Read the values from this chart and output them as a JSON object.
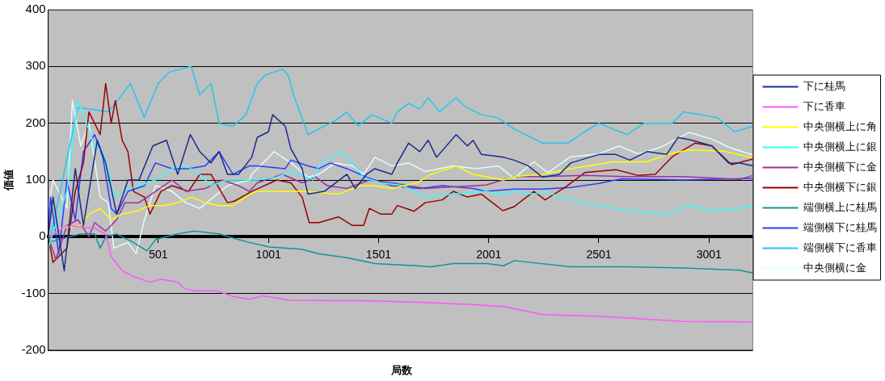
{
  "chart_data": {
    "type": "line",
    "xlabel": "局数",
    "ylabel": "価値",
    "xlim": [
      1,
      3200
    ],
    "xticks": [
      501,
      1001,
      1501,
      2001,
      2501,
      3001
    ],
    "ylim": [
      -200,
      400
    ],
    "yticks": [
      -200,
      -100,
      0,
      100,
      200,
      300,
      400
    ],
    "grid": "y",
    "legend": "right",
    "marker": "none",
    "series": [
      {
        "name": "下に桂馬",
        "color": "#1a2a8c",
        "x": [
          1,
          23,
          74,
          124,
          161,
          224,
          262,
          312,
          363,
          413,
          476,
          538,
          589,
          646,
          689,
          740,
          777,
          815,
          865,
          925,
          950,
          1001,
          1020,
          1077,
          1103,
          1154,
          1180,
          1255,
          1357,
          1395,
          1446,
          1484,
          1561,
          1586,
          1637,
          1688,
          1726,
          1764,
          1853,
          1904,
          1930,
          1968,
          2069,
          2116,
          2180,
          2245,
          2322,
          2373,
          2501,
          2578,
          2642,
          2719,
          2809,
          2860,
          2924,
          3014,
          3090,
          3141,
          3200
        ],
        "values": [
          0,
          70,
          -60,
          120,
          20,
          170,
          130,
          40,
          100,
          100,
          160,
          170,
          110,
          180,
          150,
          130,
          150,
          110,
          110,
          140,
          175,
          185,
          215,
          195,
          155,
          120,
          75,
          80,
          110,
          85,
          110,
          120,
          110,
          130,
          165,
          150,
          170,
          140,
          180,
          160,
          170,
          145,
          140,
          135,
          125,
          105,
          110,
          130,
          145,
          145,
          135,
          150,
          145,
          175,
          170,
          160,
          130,
          130,
          125
        ]
      },
      {
        "name": "下に香車",
        "color": "#ff55ff",
        "x": [
          1,
          86,
          212,
          262,
          287,
          337,
          388,
          463,
          513,
          589,
          614,
          664,
          765,
          840,
          915,
          975,
          1103,
          1484,
          1739,
          1955,
          2069,
          2245,
          2501,
          2885,
          3200
        ],
        "values": [
          0,
          20,
          15,
          5,
          -35,
          -60,
          -70,
          -80,
          -75,
          -80,
          -90,
          -95,
          -95,
          -105,
          -110,
          -104,
          -112,
          -113,
          -116,
          -120,
          -123,
          -137,
          -140,
          -149,
          -150
        ]
      },
      {
        "name": "中央側横上に角",
        "color": "#ffff00",
        "x": [
          1,
          61,
          149,
          186,
          237,
          287,
          337,
          400,
          463,
          526,
          589,
          651,
          714,
          777,
          840,
          915,
          950,
          1039,
          1166,
          1319,
          1421,
          1484,
          1561,
          1675,
          1739,
          1853,
          1930,
          2069,
          2116,
          2245,
          2373,
          2565,
          2719,
          2821,
          2911,
          3065,
          3200
        ],
        "values": [
          0,
          15,
          20,
          40,
          50,
          30,
          40,
          45,
          55,
          55,
          60,
          70,
          60,
          55,
          55,
          75,
          80,
          80,
          80,
          75,
          90,
          90,
          85,
          95,
          110,
          125,
          110,
          100,
          106,
          110,
          120,
          132,
          132,
          146,
          153,
          151,
          139
        ]
      },
      {
        "name": "中央側横上に銀",
        "color": "#33ffff",
        "x": [
          1,
          86,
          136,
          212,
          249,
          274,
          299,
          337,
          413,
          488,
          563,
          626,
          689,
          740,
          815,
          915,
          950,
          1039,
          1103,
          1204,
          1230,
          1332,
          1382,
          1433,
          1510,
          1612,
          1713,
          1840,
          1988,
          2065,
          2116,
          2206,
          2257,
          2322,
          2437,
          2565,
          2693,
          2809,
          2911,
          3014,
          3200
        ],
        "values": [
          -20,
          80,
          240,
          160,
          150,
          120,
          70,
          80,
          90,
          100,
          120,
          125,
          110,
          90,
          100,
          100,
          100,
          105,
          115,
          100,
          125,
          150,
          130,
          105,
          95,
          90,
          70,
          75,
          80,
          75,
          80,
          75,
          80,
          70,
          60,
          51,
          44,
          39,
          56,
          46,
          53
        ]
      },
      {
        "name": "中央側横下に金",
        "color": "#993399",
        "x": [
          1,
          36,
          86,
          136,
          186,
          212,
          262,
          312,
          350,
          413,
          488,
          563,
          626,
          714,
          790,
          865,
          915,
          950,
          1065,
          1154,
          1217,
          1268,
          1357,
          1459,
          1561,
          1637,
          1713,
          1840,
          1988,
          2116,
          2245,
          2437,
          2629,
          2885,
          3141,
          3200
        ],
        "values": [
          0,
          -40,
          20,
          30,
          0,
          25,
          10,
          30,
          60,
          60,
          80,
          100,
          80,
          85,
          100,
          90,
          80,
          95,
          110,
          95,
          105,
          90,
          85,
          100,
          95,
          90,
          85,
          88,
          91,
          106,
          106,
          108,
          106,
          106,
          101,
          108
        ]
      },
      {
        "name": "中央側横下に銀",
        "color": "#990000",
        "x": [
          1,
          23,
          86,
          124,
          161,
          186,
          237,
          262,
          287,
          306,
          337,
          363,
          388,
          438,
          463,
          513,
          563,
          638,
          689,
          740,
          815,
          848,
          925,
          1039,
          1103,
          1154,
          1186,
          1230,
          1319,
          1382,
          1433,
          1459,
          1510,
          1561,
          1586,
          1662,
          1713,
          1790,
          1840,
          1904,
          1968,
          2065,
          2116,
          2206,
          2257,
          2347,
          2437,
          2578,
          2680,
          2757,
          2834,
          2937,
          3014,
          3103,
          3200
        ],
        "values": [
          0,
          -45,
          -20,
          80,
          130,
          220,
          180,
          270,
          200,
          240,
          170,
          150,
          80,
          70,
          40,
          80,
          90,
          80,
          110,
          110,
          60,
          63,
          80,
          100,
          95,
          70,
          25,
          25,
          35,
          20,
          20,
          50,
          40,
          40,
          55,
          45,
          60,
          65,
          80,
          70,
          75,
          46,
          53,
          80,
          65,
          87,
          113,
          118,
          108,
          110,
          141,
          165,
          160,
          127,
          137
        ]
      },
      {
        "name": "端側横上に桂馬",
        "color": "#139494",
        "x": [
          1,
          149,
          212,
          237,
          262,
          312,
          388,
          450,
          488,
          589,
          664,
          777,
          865,
          915,
          1005,
          1150,
          1230,
          1357,
          1484,
          1675,
          1739,
          1840,
          1993,
          2069,
          2116,
          2373,
          2629,
          2885,
          3141,
          3200
        ],
        "values": [
          -10,
          5,
          5,
          -20,
          0,
          5,
          -10,
          -25,
          -5,
          5,
          10,
          5,
          -5,
          -10,
          -18,
          -22,
          -30,
          -37,
          -47,
          -51,
          -53,
          -47,
          -47,
          -51,
          -42,
          -53,
          -53,
          -55,
          -59,
          -64
        ]
      },
      {
        "name": "端側横下に桂馬",
        "color": "#2b3cff",
        "x": [
          1,
          11,
          49,
          86,
          124,
          161,
          212,
          249,
          287,
          312,
          363,
          438,
          488,
          563,
          638,
          714,
          777,
          840,
          915,
          950,
          1077,
          1103,
          1180,
          1230,
          1281,
          1357,
          1446,
          1561,
          1688,
          1790,
          1930,
          1988,
          2116,
          2245,
          2373,
          2501,
          2604,
          2885,
          3200
        ],
        "values": [
          0,
          70,
          -30,
          100,
          30,
          150,
          180,
          140,
          50,
          40,
          80,
          90,
          130,
          120,
          120,
          125,
          150,
          110,
          125,
          125,
          120,
          135,
          125,
          120,
          130,
          120,
          105,
          90,
          85,
          90,
          85,
          80,
          84,
          84,
          87,
          94,
          102,
          100,
          103
        ]
      },
      {
        "name": "端側横下に香車",
        "color": "#1ec8f0",
        "x": [
          1,
          136,
          274,
          375,
          437,
          500,
          550,
          650,
          689,
          740,
          777,
          840,
          899,
          950,
          987,
          1065,
          1090,
          1115,
          1180,
          1230,
          1306,
          1357,
          1408,
          1472,
          1561,
          1586,
          1637,
          1688,
          1726,
          1777,
          1853,
          1891,
          1968,
          2040,
          2116,
          2245,
          2360,
          2437,
          2501,
          2629,
          2706,
          2834,
          2885,
          3039,
          3116,
          3200
        ],
        "values": [
          -20,
          228,
          220,
          270,
          210,
          270,
          290,
          300,
          250,
          270,
          200,
          195,
          215,
          270,
          285,
          295,
          285,
          250,
          180,
          190,
          205,
          220,
          195,
          215,
          200,
          220,
          235,
          225,
          245,
          220,
          245,
          230,
          215,
          210,
          190,
          165,
          165,
          185,
          200,
          180,
          200,
          200,
          220,
          210,
          185,
          195
        ]
      },
      {
        "name": "中央側横に金",
        "color": "#ddffff",
        "x": [
          1,
          23,
          86,
          111,
          149,
          186,
          237,
          274,
          299,
          363,
          400,
          438,
          488,
          563,
          626,
          689,
          752,
          815,
          915,
          925,
          1027,
          1103,
          1180,
          1230,
          1306,
          1382,
          1433,
          1484,
          1561,
          1637,
          1713,
          1840,
          1942,
          2044,
          2116,
          2206,
          2270,
          2373,
          2501,
          2591,
          2680,
          2783,
          2911,
          3014,
          3090,
          3200
        ],
        "values": [
          50,
          100,
          50,
          240,
          160,
          200,
          70,
          60,
          -20,
          -10,
          -30,
          30,
          90,
          80,
          60,
          50,
          70,
          90,
          100,
          110,
          150,
          130,
          105,
          110,
          130,
          125,
          110,
          140,
          125,
          130,
          115,
          125,
          120,
          125,
          103,
          132,
          113,
          141,
          146,
          160,
          146,
          158,
          184,
          172,
          158,
          144
        ]
      }
    ]
  }
}
